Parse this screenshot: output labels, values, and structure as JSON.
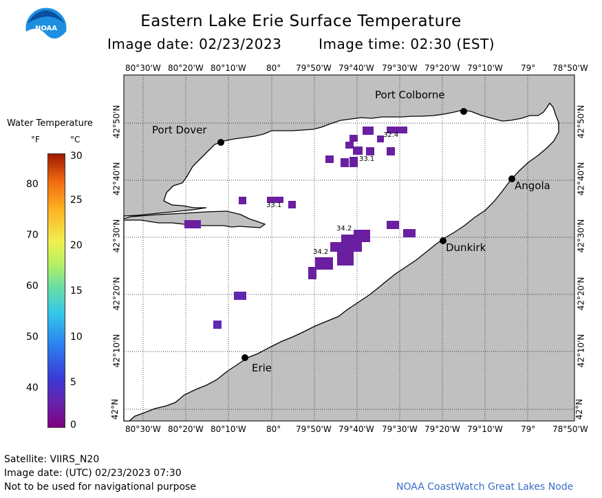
{
  "header": {
    "title": "Eastern Lake Erie Surface Temperature",
    "image_date": "Image date: 02/23/2023",
    "image_time": "Image time: 02:30 (EST)"
  },
  "logo": {
    "text": "NOAA",
    "icon": "noaa-logo"
  },
  "map": {
    "lon_labels": [
      "80°30'W",
      "80°20'W",
      "80°10'W",
      "80°",
      "79°50'W",
      "79°40'W",
      "79°30'W",
      "79°20'W",
      "79°10'W",
      "79°",
      "78°50'W"
    ],
    "lat_labels": [
      "42°50'N",
      "42°40'N",
      "42°30'N",
      "42°20'N",
      "42°10'N",
      "42°N"
    ],
    "colors": {
      "land": "#c0c0c0",
      "water": "#ffffff",
      "coast": "#000000",
      "ice_cold": "#6a1fa0"
    },
    "cities": [
      {
        "name": "Port Colborne"
      },
      {
        "name": "Port Dover"
      },
      {
        "name": "Angola"
      },
      {
        "name": "Dunkirk"
      },
      {
        "name": "Erie"
      }
    ],
    "pixel_labels": [
      "32.4",
      "33.1",
      "33.1",
      "34.2",
      "34.2"
    ]
  },
  "legend": {
    "title": "Water Temperature",
    "f_label": "°F",
    "c_label": "°C",
    "f_ticks": [
      "80",
      "70",
      "60",
      "50",
      "40"
    ],
    "c_ticks": [
      "30",
      "25",
      "20",
      "15",
      "10",
      "5",
      "0"
    ]
  },
  "footer": {
    "satellite": "Satellite: VIIRS_N20",
    "utc_date": "Image date: (UTC) 02/23/2023  07:30",
    "disclaimer": "Not to be used for navigational purpose",
    "credit": "NOAA CoastWatch Great Lakes Node"
  }
}
